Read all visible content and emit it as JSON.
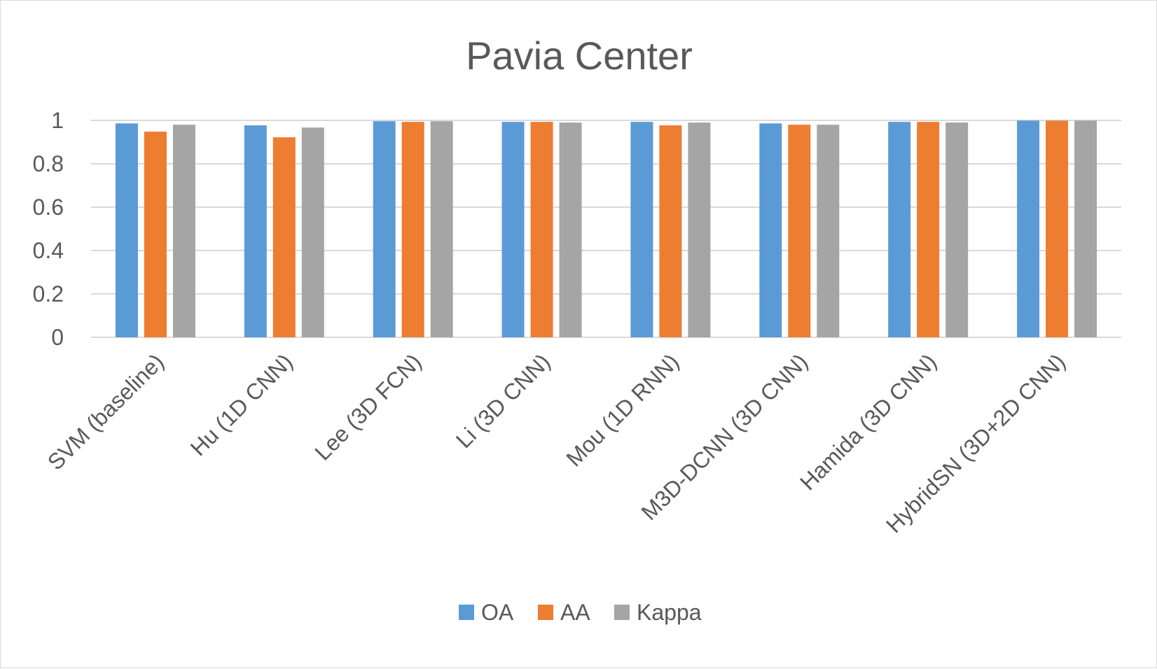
{
  "chart_data": {
    "type": "bar",
    "title": "Pavia Center",
    "xlabel": "",
    "ylabel": "",
    "ylim": [
      0,
      1
    ],
    "yticks": [
      0,
      0.2,
      0.4,
      0.6,
      0.8,
      1
    ],
    "ytick_labels": [
      "0",
      "0.2",
      "0.4",
      "0.6",
      "0.8",
      "1"
    ],
    "grid": true,
    "legend_position": "bottom",
    "categories": [
      "SVM (baseline)",
      "Hu (1D CNN)",
      "Lee (3D FCN)",
      "Li (3D CNN)",
      "Mou (1D RNN)",
      "M3D-DCNN (3D CNN)",
      "Hamida (3D CNN)",
      "HybridSN (3D+2D CNN)"
    ],
    "series": [
      {
        "name": "OA",
        "color": "#5b9bd5",
        "values": [
          0.986,
          0.977,
          0.996,
          0.993,
          0.993,
          0.986,
          0.993,
          0.999
        ]
      },
      {
        "name": "AA",
        "color": "#ed7d31",
        "values": [
          0.948,
          0.922,
          0.993,
          0.993,
          0.977,
          0.98,
          0.993,
          0.999
        ]
      },
      {
        "name": "Kappa",
        "color": "#a5a5a5",
        "values": [
          0.98,
          0.967,
          0.996,
          0.99,
          0.99,
          0.98,
          0.99,
          0.999
        ]
      }
    ]
  }
}
